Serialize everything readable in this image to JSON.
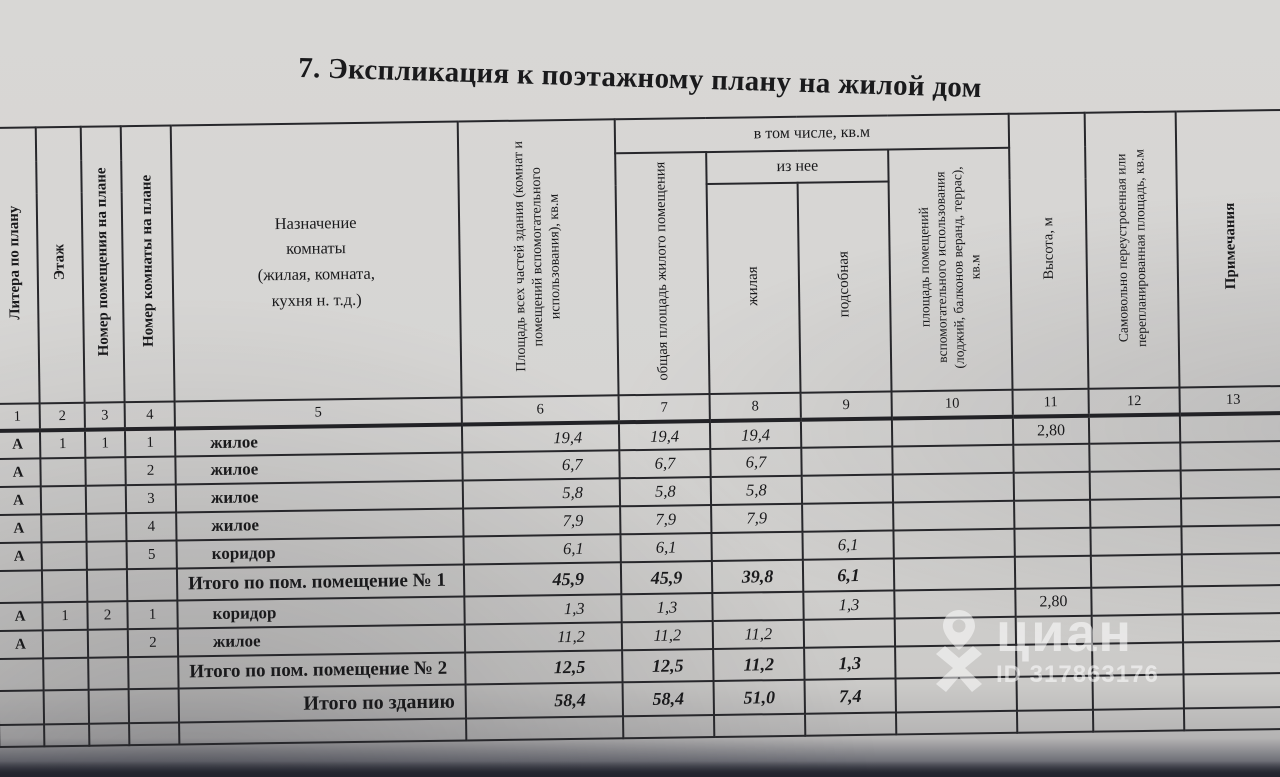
{
  "title": "7. Экспликация к поэтажному плану на жилой дом",
  "table": {
    "headers": {
      "col1": "Литера по плану",
      "col2": "Этаж",
      "col3": "Номер помещения  на плане",
      "col4": "Номер комнаты на плане",
      "col5": "Назначение\nкомнаты\n(жилая, комната,\nкухня н. т.д.)",
      "col6": "Площадь всех частей здания (комнат и помещений вспомогательного использования), кв.м",
      "group_7_10": "в том числе, кв.м",
      "col7": "общая площадь жилого помещения",
      "group_8_9": "из нее",
      "col8": "жилая",
      "col9": "подсобная",
      "col10": "площадь помещений вспомогательного использования (лоджий, балконов веранд, террас), кв.м",
      "col11": "Высота, м",
      "col12": "Самовольно переустроенная или перепланированная площадь, кв.м",
      "col13": "Примечания"
    },
    "column_numbers": [
      "1",
      "2",
      "3",
      "4",
      "5",
      "6",
      "7",
      "8",
      "9",
      "10",
      "11",
      "12",
      "13"
    ],
    "rows": [
      {
        "kind": "data",
        "cells": [
          "А",
          "1",
          "1",
          "1",
          "жилое",
          "19,4",
          "19,4",
          "19,4",
          "",
          "",
          "2,80",
          "",
          ""
        ]
      },
      {
        "kind": "data",
        "cells": [
          "А",
          "",
          "",
          "2",
          "жилое",
          "6,7",
          "6,7",
          "6,7",
          "",
          "",
          "",
          "",
          ""
        ]
      },
      {
        "kind": "data",
        "cells": [
          "А",
          "",
          "",
          "3",
          "жилое",
          "5,8",
          "5,8",
          "5,8",
          "",
          "",
          "",
          "",
          ""
        ]
      },
      {
        "kind": "data",
        "cells": [
          "А",
          "",
          "",
          "4",
          "жилое",
          "7,9",
          "7,9",
          "7,9",
          "",
          "",
          "",
          "",
          ""
        ]
      },
      {
        "kind": "data",
        "cells": [
          "А",
          "",
          "",
          "5",
          "коридор",
          "6,1",
          "6,1",
          "",
          "6,1",
          "",
          "",
          "",
          ""
        ]
      },
      {
        "kind": "subtotal",
        "cells": [
          "",
          "",
          "",
          "",
          "Итого по пом. помещение № 1",
          "45,9",
          "45,9",
          "39,8",
          "6,1",
          "",
          "",
          "",
          ""
        ]
      },
      {
        "kind": "data",
        "cells": [
          "А",
          "1",
          "2",
          "1",
          "коридор",
          "1,3",
          "1,3",
          "",
          "1,3",
          "",
          "2,80",
          "",
          ""
        ]
      },
      {
        "kind": "data",
        "cells": [
          "А",
          "",
          "",
          "2",
          "жилое",
          "11,2",
          "11,2",
          "11,2",
          "",
          "",
          "",
          "",
          ""
        ]
      },
      {
        "kind": "subtotal",
        "cells": [
          "",
          "",
          "",
          "",
          "Итого по пом. помещение № 2",
          "12,5",
          "12,5",
          "11,2",
          "1,3",
          "",
          "",
          "",
          ""
        ]
      },
      {
        "kind": "total",
        "cells": [
          "",
          "",
          "",
          "",
          "Итого по зданию",
          "58,4",
          "58,4",
          "51,0",
          "7,4",
          "",
          "",
          "",
          ""
        ]
      },
      {
        "kind": "empty",
        "cells": [
          "",
          "",
          "",
          "",
          "",
          "",
          "",
          "",
          "",
          "",
          "",
          "",
          ""
        ]
      }
    ]
  },
  "watermark": {
    "logo": "циан",
    "id": "ID 317863176"
  }
}
